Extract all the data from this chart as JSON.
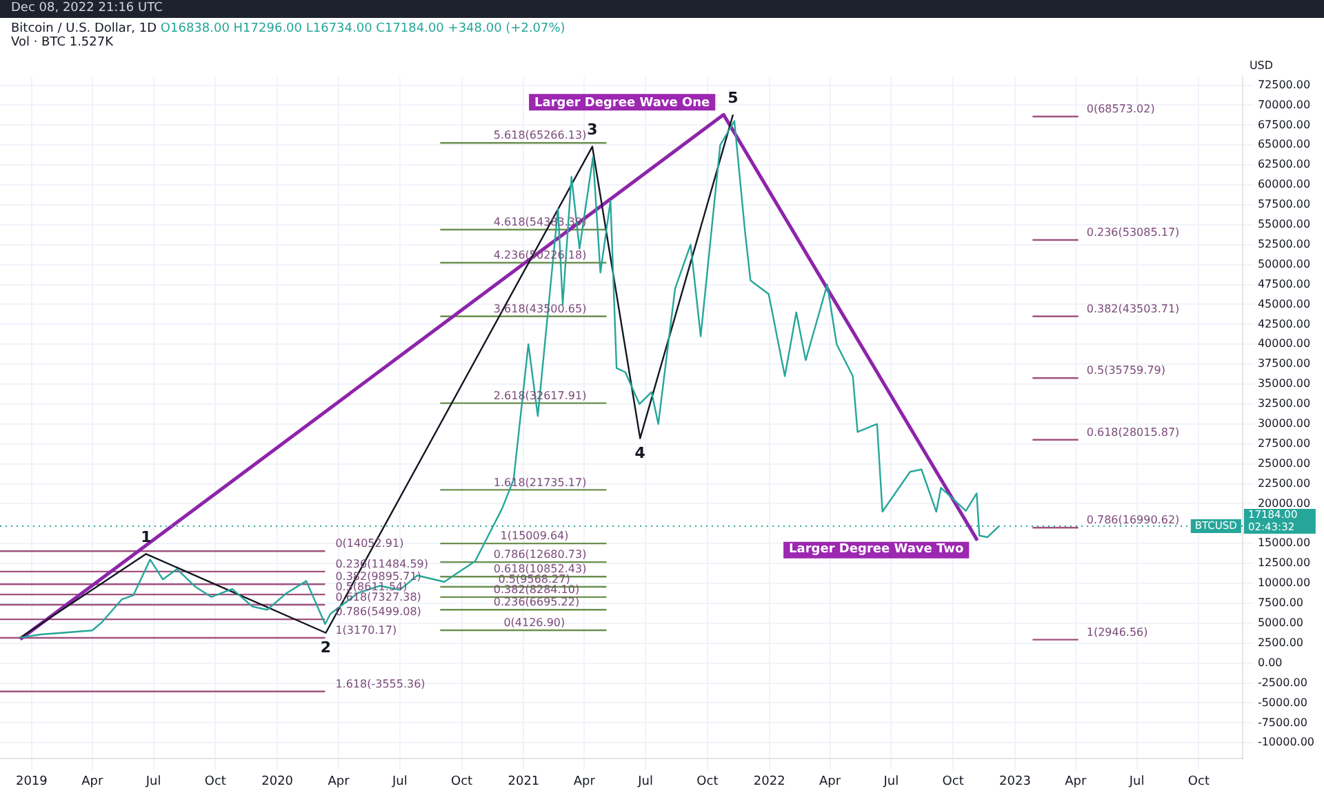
{
  "chart_data": {
    "type": "line",
    "title": "Bitcoin / U.S. Dollar, 1D",
    "subtitle": "O16838.00 H17296.00 L16734.00 C17184.00 +348.00 (+2.07%)",
    "ylabel": "USD",
    "xlim": [
      "2018-11-15",
      "2023-12-05"
    ],
    "xticks": [
      {
        "value": "2019-01-01",
        "label": "2019"
      },
      {
        "value": "2019-04-01",
        "label": "Apr"
      },
      {
        "value": "2019-07-01",
        "label": "Jul"
      },
      {
        "value": "2019-10-01",
        "label": "Oct"
      },
      {
        "value": "2020-01-01",
        "label": "2020"
      },
      {
        "value": "2020-04-01",
        "label": "Apr"
      },
      {
        "value": "2020-07-01",
        "label": "Jul"
      },
      {
        "value": "2020-10-01",
        "label": "Oct"
      },
      {
        "value": "2021-01-01",
        "label": "2021"
      },
      {
        "value": "2021-04-01",
        "label": "Apr"
      },
      {
        "value": "2021-07-01",
        "label": "Jul"
      },
      {
        "value": "2021-10-01",
        "label": "Oct"
      },
      {
        "value": "2022-01-01",
        "label": "2022"
      },
      {
        "value": "2022-04-01",
        "label": "Apr"
      },
      {
        "value": "2022-07-01",
        "label": "Jul"
      },
      {
        "value": "2022-10-01",
        "label": "Oct"
      },
      {
        "value": "2023-01-01",
        "label": "2023"
      },
      {
        "value": "2023-04-01",
        "label": "Apr"
      },
      {
        "value": "2023-07-01",
        "label": "Jul"
      },
      {
        "value": "2023-10-01",
        "label": "Oct"
      }
    ],
    "ylim": [
      -12000,
      73500
    ],
    "yticks": [
      {
        "value": -10000,
        "label": "-10000.00"
      },
      {
        "value": -7500,
        "label": "-7500.00"
      },
      {
        "value": -5000,
        "label": "-5000.00"
      },
      {
        "value": -2500,
        "label": "-2500.00"
      },
      {
        "value": 0,
        "label": "0.00"
      },
      {
        "value": 2500,
        "label": "2500.00"
      },
      {
        "value": 5000,
        "label": "5000.00"
      },
      {
        "value": 7500,
        "label": "7500.00"
      },
      {
        "value": 10000,
        "label": "10000.00"
      },
      {
        "value": 12500,
        "label": "12500.00"
      },
      {
        "value": 15000,
        "label": "15000.00"
      },
      {
        "value": 20000,
        "label": "20000.00"
      },
      {
        "value": 22500,
        "label": "22500.00"
      },
      {
        "value": 25000,
        "label": "25000.00"
      },
      {
        "value": 27500,
        "label": "27500.00"
      },
      {
        "value": 30000,
        "label": "30000.00"
      },
      {
        "value": 32500,
        "label": "32500.00"
      },
      {
        "value": 35000,
        "label": "35000.00"
      },
      {
        "value": 37500,
        "label": "37500.00"
      },
      {
        "value": 40000,
        "label": "40000.00"
      },
      {
        "value": 42500,
        "label": "42500.00"
      },
      {
        "value": 45000,
        "label": "45000.00"
      },
      {
        "value": 47500,
        "label": "47500.00"
      },
      {
        "value": 50000,
        "label": "50000.00"
      },
      {
        "value": 52500,
        "label": "52500.00"
      },
      {
        "value": 55000,
        "label": "55000.00"
      },
      {
        "value": 57500,
        "label": "57500.00"
      },
      {
        "value": 60000,
        "label": "60000.00"
      },
      {
        "value": 62500,
        "label": "62500.00"
      },
      {
        "value": 65000,
        "label": "65000.00"
      },
      {
        "value": 67500,
        "label": "67500.00"
      },
      {
        "value": 70000,
        "label": "70000.00"
      },
      {
        "value": 72500,
        "label": "72500.00"
      }
    ],
    "grid": true,
    "legend": false,
    "series": [
      {
        "color": "#26a69a",
        "x": [
          "2018-12-15",
          "2019-01-15",
          "2019-02-15",
          "2019-04-01",
          "2019-04-15",
          "2019-05-15",
          "2019-06-01",
          "2019-06-26",
          "2019-07-15",
          "2019-08-05",
          "2019-09-01",
          "2019-09-25",
          "2019-10-26",
          "2019-11-25",
          "2019-12-17",
          "2020-01-15",
          "2020-02-13",
          "2020-03-12",
          "2020-03-20",
          "2020-04-30",
          "2020-06-01",
          "2020-07-01",
          "2020-07-27",
          "2020-09-05",
          "2020-10-21",
          "2020-11-30",
          "2020-12-17",
          "2021-01-08",
          "2021-01-22",
          "2021-02-21",
          "2021-02-28",
          "2021-03-13",
          "2021-03-25",
          "2021-04-14",
          "2021-04-25",
          "2021-05-10",
          "2021-05-19",
          "2021-06-01",
          "2021-06-22",
          "2021-07-10",
          "2021-07-20",
          "2021-08-14",
          "2021-09-06",
          "2021-09-21",
          "2021-10-20",
          "2021-11-10",
          "2021-11-26",
          "2021-12-04",
          "2021-12-31",
          "2022-01-24",
          "2022-02-10",
          "2022-02-24",
          "2022-03-28",
          "2022-04-11",
          "2022-05-05",
          "2022-05-12",
          "2022-06-10",
          "2022-06-18",
          "2022-07-29",
          "2022-08-15",
          "2022-09-06",
          "2022-09-13",
          "2022-10-20",
          "2022-11-05",
          "2022-11-09",
          "2022-11-21",
          "2022-12-08"
        ],
        "values": [
          3200,
          3600,
          3800,
          4100,
          5100,
          8000,
          8500,
          13000,
          10500,
          11800,
          9600,
          8300,
          9300,
          7100,
          6700,
          8800,
          10300,
          4900,
          6200,
          8800,
          9700,
          9200,
          11000,
          10200,
          12800,
          19400,
          23000,
          40000,
          31000,
          57000,
          45000,
          61000,
          52000,
          63500,
          49000,
          58000,
          37000,
          36500,
          32500,
          34000,
          30000,
          47000,
          52500,
          41000,
          65000,
          68000,
          54000,
          48000,
          46300,
          36000,
          44000,
          38000,
          47500,
          40000,
          36000,
          29000,
          30000,
          19000,
          24000,
          24300,
          19000,
          22000,
          19100,
          21300,
          16000,
          15800,
          17184
        ]
      },
      {
        "color": "#131722",
        "x": [
          "2018-12-15",
          "2019-06-20",
          "2020-03-13",
          "2021-04-13",
          "2021-06-23",
          "2021-11-08"
        ],
        "values": [
          3200,
          13700,
          3800,
          64800,
          28200,
          68800
        ]
      },
      {
        "color": "#8e24aa",
        "x": [
          "2018-12-15",
          "2021-10-25",
          "2022-11-06"
        ],
        "values": [
          3000,
          68800,
          15400
        ]
      },
      {
        "color": "#a0527f",
        "x": [
          "2018-11-15",
          "2020-03-12"
        ],
        "values": [
          14052.91,
          14052.91
        ]
      },
      {
        "color": "#a0527f",
        "x": [
          "2018-11-15",
          "2020-03-12"
        ],
        "values": [
          11484.59,
          11484.59
        ]
      },
      {
        "color": "#a0527f",
        "x": [
          "2018-11-15",
          "2020-03-12"
        ],
        "values": [
          9895.71,
          9895.71
        ]
      },
      {
        "color": "#a0527f",
        "x": [
          "2018-11-15",
          "2020-03-12"
        ],
        "values": [
          8611.54,
          8611.54
        ]
      },
      {
        "color": "#a0527f",
        "x": [
          "2018-11-15",
          "2020-03-12"
        ],
        "values": [
          7327.38,
          7327.38
        ]
      },
      {
        "color": "#a0527f",
        "x": [
          "2018-11-15",
          "2020-03-12"
        ],
        "values": [
          5499.08,
          5499.08
        ]
      },
      {
        "color": "#a0527f",
        "x": [
          "2018-11-15",
          "2020-03-12"
        ],
        "values": [
          3170.17,
          3170.17
        ]
      },
      {
        "color": "#a0527f",
        "x": [
          "2018-11-15",
          "2020-03-12"
        ],
        "values": [
          -3555.36,
          -3555.36
        ]
      },
      {
        "color": "#6b8f4e",
        "x": [
          "2020-08-30",
          "2021-05-04"
        ],
        "values": [
          4126.9,
          4126.9
        ]
      },
      {
        "color": "#6b8f4e",
        "x": [
          "2020-08-30",
          "2021-05-04"
        ],
        "values": [
          6695.22,
          6695.22
        ]
      },
      {
        "color": "#6b8f4e",
        "x": [
          "2020-08-30",
          "2021-05-04"
        ],
        "values": [
          8284.1,
          8284.1
        ]
      },
      {
        "color": "#6b8f4e",
        "x": [
          "2020-08-30",
          "2021-05-04"
        ],
        "values": [
          9568.27,
          9568.27
        ]
      },
      {
        "color": "#6b8f4e",
        "x": [
          "2020-08-30",
          "2021-05-04"
        ],
        "values": [
          10852.43,
          10852.43
        ]
      },
      {
        "color": "#6b8f4e",
        "x": [
          "2020-08-30",
          "2021-05-04"
        ],
        "values": [
          12680.73,
          12680.73
        ]
      },
      {
        "color": "#6b8f4e",
        "x": [
          "2020-08-30",
          "2021-05-04"
        ],
        "values": [
          15009.64,
          15009.64
        ]
      },
      {
        "color": "#6b8f4e",
        "x": [
          "2020-08-30",
          "2021-05-04"
        ],
        "values": [
          21735.17,
          21735.17
        ]
      },
      {
        "color": "#6b8f4e",
        "x": [
          "2020-08-30",
          "2021-05-04"
        ],
        "values": [
          32617.91,
          32617.91
        ]
      },
      {
        "color": "#6b8f4e",
        "x": [
          "2020-08-30",
          "2021-05-04"
        ],
        "values": [
          43500.65,
          43500.65
        ]
      },
      {
        "color": "#6b8f4e",
        "x": [
          "2020-08-30",
          "2021-05-04"
        ],
        "values": [
          50226.18,
          50226.18
        ]
      },
      {
        "color": "#6b8f4e",
        "x": [
          "2020-08-30",
          "2021-05-04"
        ],
        "values": [
          54383.39,
          54383.39
        ]
      },
      {
        "color": "#6b8f4e",
        "x": [
          "2020-08-30",
          "2021-05-04"
        ],
        "values": [
          65266.13,
          65266.13
        ]
      },
      {
        "color": "#a0527f",
        "x": [
          "2023-01-27",
          "2023-04-05"
        ],
        "values": [
          68573.02,
          68573.02
        ]
      },
      {
        "color": "#a0527f",
        "x": [
          "2023-01-27",
          "2023-04-05"
        ],
        "values": [
          53085.17,
          53085.17
        ]
      },
      {
        "color": "#a0527f",
        "x": [
          "2023-01-27",
          "2023-04-05"
        ],
        "values": [
          43503.71,
          43503.71
        ]
      },
      {
        "color": "#a0527f",
        "x": [
          "2023-01-27",
          "2023-04-05"
        ],
        "values": [
          35759.79,
          35759.79
        ]
      },
      {
        "color": "#a0527f",
        "x": [
          "2023-01-27",
          "2023-04-05"
        ],
        "values": [
          28015.87,
          28015.87
        ]
      },
      {
        "color": "#a0527f",
        "x": [
          "2023-01-27",
          "2023-04-05"
        ],
        "values": [
          16990.62,
          16990.62
        ]
      },
      {
        "color": "#a0527f",
        "x": [
          "2023-01-27",
          "2023-04-05"
        ],
        "values": [
          2946.56,
          2946.56
        ]
      }
    ],
    "ref_lines": [
      {
        "axis": "y",
        "value": 17184,
        "label": "BTCUSD",
        "color": "#26a69a",
        "line_style": "dotted"
      }
    ],
    "annotations": [
      "Dec 08, 2022 21:16 UTC",
      "Vol · BTC 1.527K",
      {
        "text": "1",
        "x": "2019-06-20",
        "y": 13700
      },
      {
        "text": "2",
        "x": "2020-03-13",
        "y": 3800
      },
      {
        "text": "3",
        "x": "2021-04-13",
        "y": 64800
      },
      {
        "text": "4",
        "x": "2021-06-23",
        "y": 28200
      },
      {
        "text": "5",
        "x": "2021-11-08",
        "y": 68800
      },
      {
        "text": "Larger Degree Wave One",
        "x": "2021-10-25",
        "y": 68800
      },
      {
        "text": "Larger Degree Wave Two",
        "x": "2022-11-06",
        "y": 15400
      },
      {
        "text": "17184.00",
        "x": "2023-12-05",
        "y": 17184
      },
      {
        "text": "02:43:32",
        "x": "2023-12-05",
        "y": 17184
      },
      {
        "text": "0(14052.91)",
        "x": "2020-03-15",
        "y": 14052.91
      },
      {
        "text": "0.236(11484.59)",
        "x": "2020-03-15",
        "y": 11484.59
      },
      {
        "text": "0.382(9895.71)",
        "x": "2020-03-15",
        "y": 9895.71
      },
      {
        "text": "0.5(8611.54)",
        "x": "2020-03-15",
        "y": 8611.54
      },
      {
        "text": "0.618(7327.38)",
        "x": "2020-03-15",
        "y": 7327.38
      },
      {
        "text": "0.786(5499.08)",
        "x": "2020-03-15",
        "y": 5499.08
      },
      {
        "text": "1(3170.17)",
        "x": "2020-03-15",
        "y": 3170.17
      },
      {
        "text": "1.618(-3555.36)",
        "x": "2020-03-15",
        "y": -3555.36
      },
      {
        "text": "0(4126.90)",
        "x": "2020-11-20",
        "y": 4126.9
      },
      {
        "text": "0.236(6695.22)",
        "x": "2020-11-05",
        "y": 6695.22
      },
      {
        "text": "0.382(8284.10)",
        "x": "2020-11-05",
        "y": 8284.1
      },
      {
        "text": "0.5(9568.27)",
        "x": "2020-11-12",
        "y": 9568.27
      },
      {
        "text": "0.618(10852.43)",
        "x": "2020-11-05",
        "y": 10852.43
      },
      {
        "text": "0.786(12680.73)",
        "x": "2020-11-05",
        "y": 12680.73
      },
      {
        "text": "1(15009.64)",
        "x": "2020-11-15",
        "y": 15009.64
      },
      {
        "text": "1.618(21735.17)",
        "x": "2020-11-05",
        "y": 21735.17
      },
      {
        "text": "2.618(32617.91)",
        "x": "2020-11-05",
        "y": 32617.91
      },
      {
        "text": "3.618(43500.65)",
        "x": "2020-11-05",
        "y": 43500.65
      },
      {
        "text": "4.236(50226.18)",
        "x": "2020-11-05",
        "y": 50226.18
      },
      {
        "text": "4.618(54383.39)",
        "x": "2020-11-05",
        "y": 54383.39
      },
      {
        "text": "5.618(65266.13)",
        "x": "2020-11-05",
        "y": 65266.13
      },
      {
        "text": "0(68573.02)",
        "x": "2023-04-05",
        "y": 68573.02
      },
      {
        "text": "0.236(53085.17)",
        "x": "2023-04-05",
        "y": 53085.17
      },
      {
        "text": "0.382(43503.71)",
        "x": "2023-04-05",
        "y": 43503.71
      },
      {
        "text": "0.5(35759.79)",
        "x": "2023-04-05",
        "y": 35759.79
      },
      {
        "text": "0.618(28015.87)",
        "x": "2023-04-05",
        "y": 28015.87
      },
      {
        "text": "0.786(16990.62)",
        "x": "2023-04-05",
        "y": 16990.62
      },
      {
        "text": "1(2946.56)",
        "x": "2023-04-05",
        "y": 2946.56
      }
    ]
  }
}
